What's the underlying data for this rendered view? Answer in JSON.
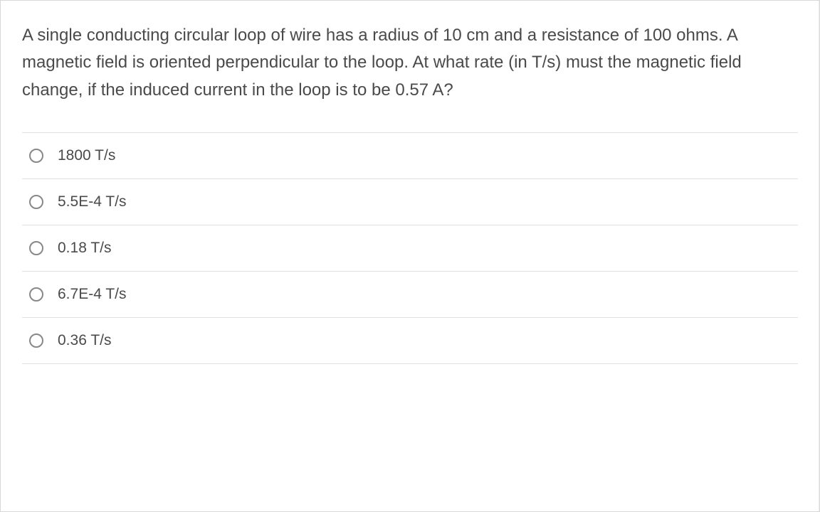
{
  "question": {
    "text": "A single conducting circular loop of wire has a radius of 10 cm and a resistance of 100 ohms.  A magnetic field is oriented perpendicular to the loop.  At what rate (in T/s) must the magnetic field change, if the induced current in the loop is to be 0.57 A?"
  },
  "options": [
    {
      "label": "1800 T/s"
    },
    {
      "label": "5.5E-4 T/s"
    },
    {
      "label": "0.18 T/s"
    },
    {
      "label": "6.7E-4 T/s"
    },
    {
      "label": "0.36 T/s"
    }
  ],
  "colors": {
    "text": "#4a4a4a",
    "border": "#e0e0e0",
    "radio_border": "#888888",
    "background": "#ffffff"
  }
}
